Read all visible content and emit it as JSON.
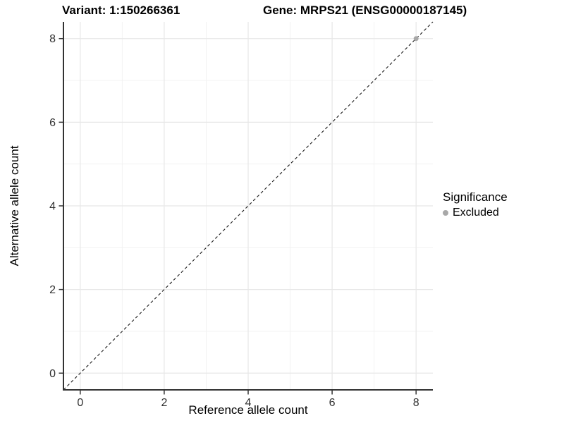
{
  "header": {
    "variant_title": "Variant: 1:150266361",
    "gene_title": "Gene: MRPS21 (ENSG00000187145)"
  },
  "legend": {
    "title": "Significance",
    "items": [
      {
        "label": "Excluded",
        "color": "#a8a8a8"
      }
    ]
  },
  "colors": {
    "background": "#ffffff",
    "axis_line": "#333333",
    "tick_mark": "#333333",
    "tick_text": "#303030",
    "grid_major": "#e7e7e7",
    "grid_minor": "#f1f1f1",
    "reference_line": "#1a1a1a",
    "point": "#a8a8a8"
  },
  "chart_data": {
    "type": "scatter",
    "titles": [
      "Variant: 1:150266361",
      "Gene: MRPS21 (ENSG00000187145)"
    ],
    "xlabel": "Reference allele count",
    "ylabel": "Alternative allele count",
    "xlim": [
      -0.4,
      8.4
    ],
    "ylim": [
      -0.4,
      8.4
    ],
    "x_ticks": [
      0,
      2,
      4,
      6,
      8
    ],
    "y_ticks": [
      0,
      2,
      4,
      6,
      8
    ],
    "x_minor_ticks": [
      1,
      3,
      5,
      7
    ],
    "y_minor_ticks": [
      1,
      3,
      5,
      7
    ],
    "grid": "major+minor",
    "legend_position": "right",
    "series": [
      {
        "name": "Excluded",
        "color": "#a8a8a8",
        "points": [
          {
            "x": 8,
            "y": 8
          }
        ]
      }
    ],
    "reference_line": {
      "type": "identity y=x",
      "style": "dashed",
      "color": "#1a1a1a",
      "from": [
        -0.4,
        -0.4
      ],
      "to": [
        8.4,
        8.4
      ]
    }
  }
}
